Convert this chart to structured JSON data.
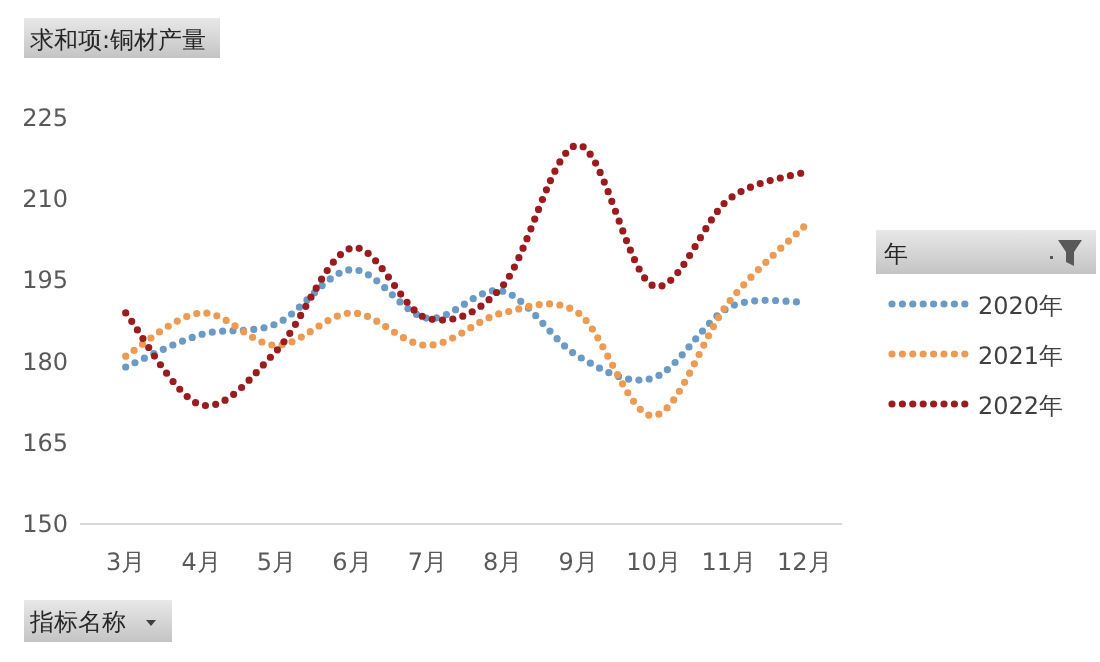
{
  "chart_data": {
    "type": "line",
    "title": "求和项:铜材产量",
    "legend_title": "年",
    "annotations": [
      "指标名称"
    ],
    "categories": [
      "3月",
      "4月",
      "5月",
      "6月",
      "7月",
      "8月",
      "9月",
      "10月",
      "11月",
      "12月"
    ],
    "series": [
      {
        "name": "2020年",
        "color": "#6b9ac4",
        "values": [
          179,
          185,
          187,
          197,
          188,
          193,
          181,
          177,
          190,
          191
        ]
      },
      {
        "name": "2021年",
        "color": "#ed9a52",
        "values": [
          181,
          189,
          183,
          189,
          183,
          189,
          189,
          170,
          191,
          205
        ]
      },
      {
        "name": "2022年",
        "color": "#9b1c1f",
        "values": [
          189,
          172,
          182,
          201,
          188,
          194,
          220,
          194,
          210,
          215
        ]
      }
    ],
    "ylim": [
      150,
      225
    ],
    "yticks": [
      150,
      165,
      180,
      195,
      210,
      225
    ],
    "grid": false,
    "legend": "right",
    "marker": "none",
    "line_style": "dotted"
  }
}
